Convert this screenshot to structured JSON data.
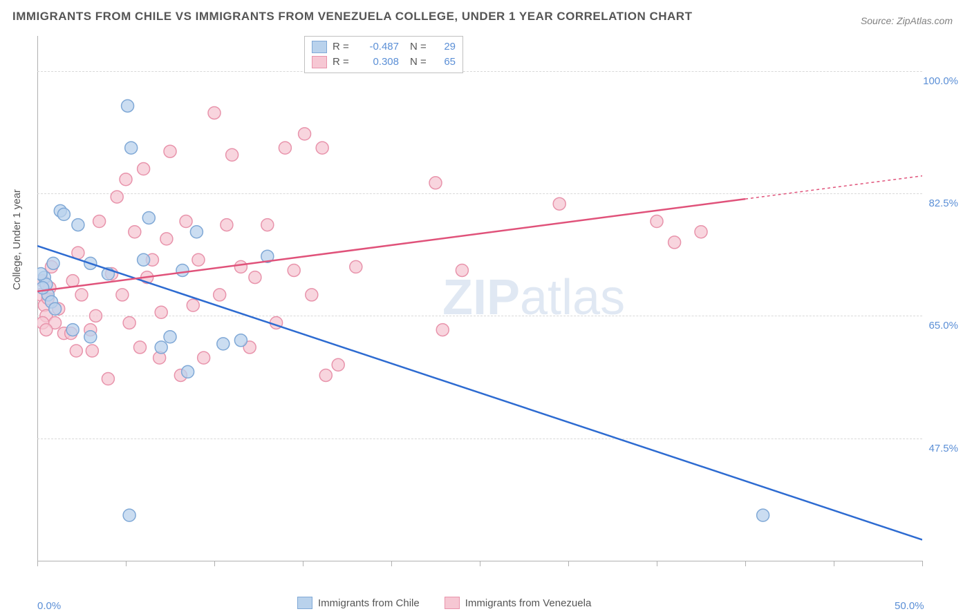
{
  "title": "IMMIGRANTS FROM CHILE VS IMMIGRANTS FROM VENEZUELA COLLEGE, UNDER 1 YEAR CORRELATION CHART",
  "source": "Source: ZipAtlas.com",
  "watermark": "ZIPatlas",
  "chart": {
    "type": "scatter",
    "ylabel": "College, Under 1 year",
    "xlim": [
      0,
      50
    ],
    "ylim": [
      30,
      105
    ],
    "x_ticks": [
      0,
      5,
      10,
      15,
      20,
      25,
      30,
      35,
      40,
      45,
      50
    ],
    "x_tick_labels": {
      "0": "0.0%",
      "50": "50.0%"
    },
    "y_ticks": [
      47.5,
      65.0,
      82.5,
      100.0
    ],
    "y_tick_labels": [
      "47.5%",
      "65.0%",
      "82.5%",
      "100.0%"
    ],
    "grid_color": "#d8d8d8",
    "axis_color": "#b0b0b0",
    "background_color": "#ffffff",
    "marker_radius": 9,
    "marker_stroke_width": 1.5,
    "line_width": 2.5,
    "series": [
      {
        "name": "Immigrants from Chile",
        "color_fill": "#b9d2ec",
        "color_stroke": "#7fa8d6",
        "line_color": "#2d6bd1",
        "r": -0.487,
        "n": 29,
        "regression": {
          "x1": 0,
          "y1": 75.0,
          "x2": 50,
          "y2": 33.0
        },
        "points": [
          [
            0.4,
            70.5
          ],
          [
            0.5,
            69.5
          ],
          [
            0.6,
            68.0
          ],
          [
            0.8,
            67.0
          ],
          [
            0.9,
            72.5
          ],
          [
            1.3,
            80.0
          ],
          [
            1.5,
            79.5
          ],
          [
            2.0,
            63.0
          ],
          [
            2.3,
            78.0
          ],
          [
            3.0,
            72.5
          ],
          [
            4.0,
            71.0
          ],
          [
            3.0,
            62.0
          ],
          [
            5.1,
            95.0
          ],
          [
            5.3,
            89.0
          ],
          [
            5.2,
            36.5
          ],
          [
            6.0,
            73.0
          ],
          [
            6.3,
            79.0
          ],
          [
            7.0,
            60.5
          ],
          [
            7.5,
            62.0
          ],
          [
            8.2,
            71.5
          ],
          [
            8.5,
            57.0
          ],
          [
            9.0,
            77.0
          ],
          [
            10.5,
            61.0
          ],
          [
            11.5,
            61.5
          ],
          [
            13.0,
            73.5
          ],
          [
            1.0,
            66.0
          ],
          [
            0.3,
            69.0
          ],
          [
            0.2,
            71.0
          ],
          [
            41.0,
            36.5
          ]
        ]
      },
      {
        "name": "Immigrants from Venezuela",
        "color_fill": "#f6c7d3",
        "color_stroke": "#e893ab",
        "line_color": "#e0527a",
        "r": 0.308,
        "n": 65,
        "regression": {
          "x1": 0,
          "y1": 68.5,
          "x2": 50,
          "y2": 85.0
        },
        "points": [
          [
            0.2,
            68.0
          ],
          [
            0.3,
            70.0
          ],
          [
            0.4,
            66.5
          ],
          [
            0.5,
            65.0
          ],
          [
            0.6,
            67.5
          ],
          [
            0.7,
            69.0
          ],
          [
            0.8,
            72.0
          ],
          [
            1.0,
            64.0
          ],
          [
            1.2,
            66.0
          ],
          [
            1.5,
            62.5
          ],
          [
            1.9,
            62.5
          ],
          [
            2.0,
            70.0
          ],
          [
            2.2,
            60.0
          ],
          [
            2.3,
            74.0
          ],
          [
            2.5,
            68.0
          ],
          [
            3.0,
            63.0
          ],
          [
            3.1,
            60.0
          ],
          [
            3.3,
            65.0
          ],
          [
            3.5,
            78.5
          ],
          [
            4.0,
            56.0
          ],
          [
            4.2,
            71.0
          ],
          [
            4.5,
            82.0
          ],
          [
            4.8,
            68.0
          ],
          [
            5.0,
            84.5
          ],
          [
            5.2,
            64.0
          ],
          [
            5.5,
            77.0
          ],
          [
            5.8,
            60.5
          ],
          [
            6.0,
            86.0
          ],
          [
            6.2,
            70.5
          ],
          [
            6.5,
            73.0
          ],
          [
            6.9,
            59.0
          ],
          [
            7.0,
            65.5
          ],
          [
            7.3,
            76.0
          ],
          [
            7.5,
            88.5
          ],
          [
            8.1,
            56.5
          ],
          [
            8.4,
            78.5
          ],
          [
            8.8,
            66.5
          ],
          [
            9.1,
            73.0
          ],
          [
            9.4,
            59.0
          ],
          [
            10.0,
            94.0
          ],
          [
            10.3,
            68.0
          ],
          [
            10.7,
            78.0
          ],
          [
            11.0,
            88.0
          ],
          [
            11.5,
            72.0
          ],
          [
            12.0,
            60.5
          ],
          [
            12.3,
            70.5
          ],
          [
            13.0,
            78.0
          ],
          [
            13.5,
            64.0
          ],
          [
            14.0,
            89.0
          ],
          [
            14.5,
            71.5
          ],
          [
            15.1,
            91.0
          ],
          [
            15.5,
            68.0
          ],
          [
            16.1,
            89.0
          ],
          [
            16.3,
            56.5
          ],
          [
            17.0,
            58.0
          ],
          [
            18.0,
            72.0
          ],
          [
            22.5,
            84.0
          ],
          [
            22.9,
            63.0
          ],
          [
            24.0,
            71.5
          ],
          [
            29.5,
            81.0
          ],
          [
            35.0,
            78.5
          ],
          [
            36.0,
            75.5
          ],
          [
            37.5,
            77.0
          ],
          [
            0.3,
            64.0
          ],
          [
            0.5,
            63.0
          ]
        ]
      }
    ]
  },
  "legend_top": {
    "r_label": "R =",
    "n_label": "N ="
  },
  "legend_bottom": {
    "items": [
      "Immigrants from Chile",
      "Immigrants from Venezuela"
    ]
  }
}
